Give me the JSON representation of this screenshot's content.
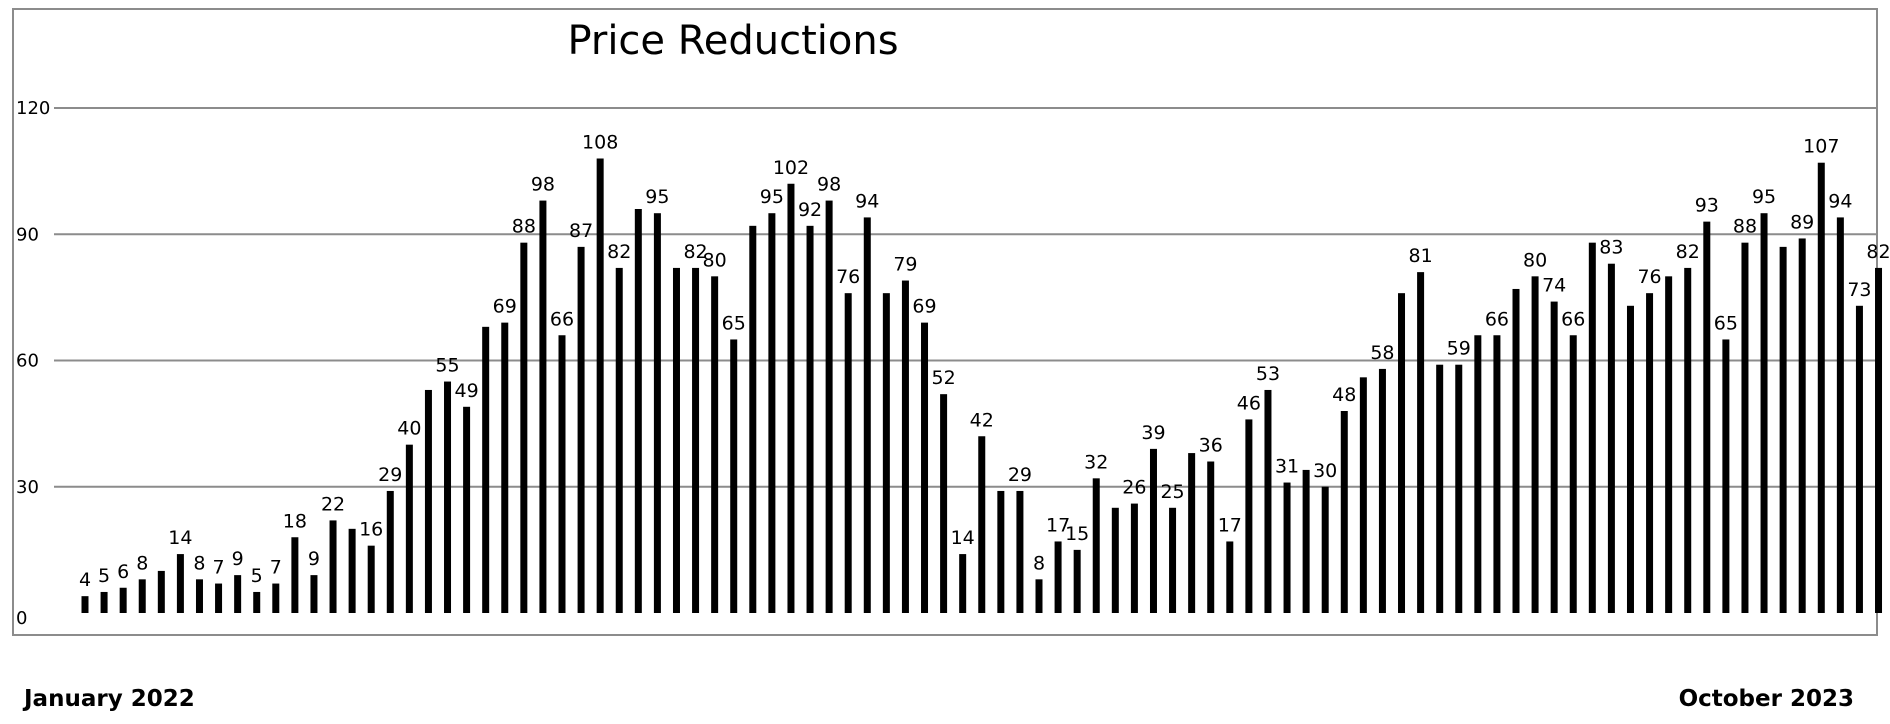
{
  "chart_data": {
    "type": "bar",
    "title": "Price Reductions",
    "xlabel": "",
    "ylabel": "",
    "ylim": [
      0,
      120
    ],
    "yticks": [
      0,
      30,
      60,
      90,
      120
    ],
    "grid": true,
    "bar_color": "#000000",
    "grid_color": "#8c8c8c",
    "values": [
      4,
      5,
      6,
      8,
      10,
      14,
      8,
      7,
      9,
      5,
      7,
      18,
      9,
      22,
      20,
      16,
      29,
      40,
      53,
      55,
      49,
      68,
      69,
      88,
      98,
      66,
      87,
      108,
      82,
      96,
      95,
      82,
      82,
      80,
      65,
      92,
      95,
      102,
      92,
      98,
      76,
      94,
      76,
      79,
      69,
      52,
      14,
      42,
      29,
      29,
      8,
      17,
      15,
      32,
      25,
      26,
      39,
      25,
      38,
      36,
      17,
      46,
      53,
      31,
      34,
      30,
      48,
      56,
      58,
      76,
      81,
      59,
      59,
      66,
      66,
      77,
      80,
      74,
      66,
      88,
      83,
      73,
      76,
      80,
      82,
      93,
      65,
      88,
      95,
      87,
      89,
      107,
      94,
      73,
      82
    ],
    "labels": [
      "4",
      "5",
      "6",
      "8",
      "",
      "14",
      "8",
      "7",
      "9",
      "5",
      "7",
      "18",
      "9",
      "22",
      "",
      "16",
      "29",
      "40",
      "",
      "55",
      "49",
      "",
      "69",
      "88",
      "98",
      "66",
      "87",
      "108",
      "82",
      "",
      "95",
      "",
      "82",
      "80",
      "65",
      "",
      "95",
      "102",
      "92",
      "98",
      "76",
      "94",
      "",
      "79",
      "69",
      "52",
      "14",
      "42",
      "",
      "29",
      "8",
      "17",
      "15",
      "32",
      "",
      "26",
      "39",
      "25",
      "",
      "36",
      "17",
      "46",
      "53",
      "31",
      "",
      "30",
      "48",
      "",
      "58",
      "",
      "81",
      "",
      "59",
      "",
      "66",
      "",
      "80",
      "74",
      "66",
      "",
      "83",
      "",
      "76",
      "",
      "82",
      "93",
      "65",
      "88",
      "95",
      "",
      "89",
      "107",
      "94",
      "73",
      "82"
    ]
  },
  "footer": {
    "start_label": "January 2022",
    "end_label": "October  2023"
  }
}
